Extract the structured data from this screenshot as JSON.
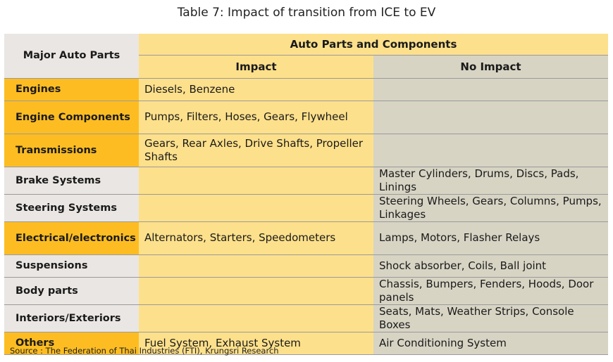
{
  "title": "Table 7: Impact of transition from ICE to EV",
  "headers": {
    "major": "Major Auto Parts",
    "group": "Auto Parts and Components",
    "impact": "Impact",
    "no_impact": "No Impact"
  },
  "rows": [
    {
      "part": "Engines",
      "impact": "Diesels, Benzene",
      "no_impact": ""
    },
    {
      "part": "Engine Components",
      "impact": "Pumps, Filters, Hoses, Gears, Flywheel",
      "no_impact": ""
    },
    {
      "part": "Transmissions",
      "impact": "Gears, Rear Axles, Drive Shafts, Propeller Shafts",
      "no_impact": ""
    },
    {
      "part": "Brake Systems",
      "impact": "",
      "no_impact": "Master Cylinders, Drums, Discs, Pads, Linings"
    },
    {
      "part": "Steering Systems",
      "impact": "",
      "no_impact": "Steering Wheels, Gears, Columns, Pumps, Linkages"
    },
    {
      "part": "Electrical/electronics",
      "impact": "Alternators, Starters, Speedometers",
      "no_impact": "Lamps, Motors, Flasher Relays"
    },
    {
      "part": "Suspensions",
      "impact": "",
      "no_impact": "Shock absorber, Coils, Ball joint"
    },
    {
      "part": "Body parts",
      "impact": "",
      "no_impact": "Chassis, Bumpers, Fenders, Hoods, Door panels"
    },
    {
      "part": "Interiors/Exteriors",
      "impact": "",
      "no_impact": "Seats, Mats, Weather Strips, Console Boxes"
    },
    {
      "part": "Others",
      "impact": "Fuel System, Exhaust System",
      "no_impact": "Air Conditioning System"
    }
  ],
  "source": "Source : The Federation of Thai Industries (FTI),  Krungsri Research",
  "colors": {
    "impact_part": "#fdbd22",
    "impact_cell": "#fde08b",
    "no_impact_cell": "#d7d4c4",
    "plain_part": "#eae6e3"
  }
}
